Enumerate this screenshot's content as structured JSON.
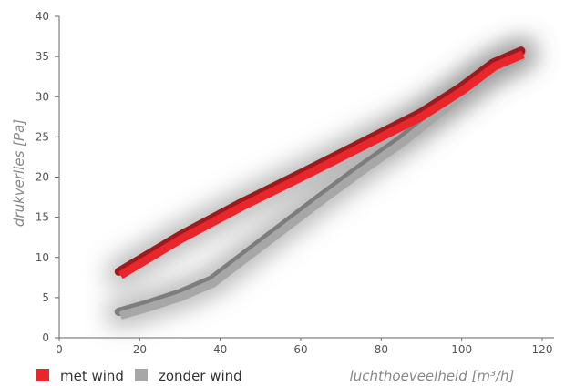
{
  "chart_data": {
    "type": "line",
    "title": "",
    "xlabel": "luchthoeveelheid [m³/h]",
    "ylabel": "drukverlies [Pa]",
    "xlim": [
      0,
      120
    ],
    "ylim": [
      0,
      40
    ],
    "x_ticks": [
      "0",
      "20",
      "40",
      "60",
      "80",
      "100",
      "120"
    ],
    "y_ticks": [
      "0",
      "5",
      "10",
      "15",
      "20",
      "25",
      "30",
      "35",
      "40"
    ],
    "grid": false,
    "legend_position": "bottom-left",
    "series": [
      {
        "name": "met wind",
        "color": "#e8262b",
        "points": [
          [
            15,
            8
          ],
          [
            30,
            12.5
          ],
          [
            45,
            16.5
          ],
          [
            60,
            20.2
          ],
          [
            75,
            24
          ],
          [
            90,
            27.8
          ],
          [
            100,
            31
          ],
          [
            108,
            34
          ],
          [
            115,
            35.5
          ]
        ]
      },
      {
        "name": "zonder wind",
        "color": "#a7a7a7",
        "points": [
          [
            15,
            3
          ],
          [
            22,
            4
          ],
          [
            30,
            5.3
          ],
          [
            38,
            7
          ],
          [
            45,
            9.7
          ],
          [
            55,
            13.5
          ],
          [
            65,
            17.3
          ],
          [
            75,
            21
          ],
          [
            85,
            24.5
          ],
          [
            95,
            28.5
          ],
          [
            105,
            32.5
          ],
          [
            115,
            35.3
          ]
        ]
      }
    ]
  }
}
